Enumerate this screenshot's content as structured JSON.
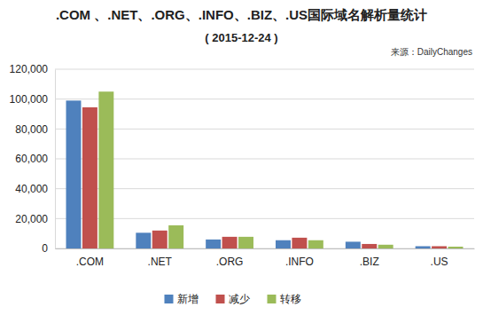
{
  "chart_data": {
    "type": "bar",
    "title": ".COM 、.NET、.ORG、.INFO、.BIZ、.US国际域名解析量统计",
    "subtitle": "( 2015-12-24 )",
    "source": "来源：DailyChanges",
    "categories": [
      ".COM",
      ".NET",
      ".ORG",
      ".INFO",
      ".BIZ",
      ".US"
    ],
    "series": [
      {
        "name": "新增",
        "color": "#4f81bd",
        "values": [
          99000,
          10500,
          6000,
          5500,
          4500,
          1500
        ]
      },
      {
        "name": "减少",
        "color": "#c0504d",
        "values": [
          94500,
          12000,
          7800,
          7200,
          3000,
          1500
        ]
      },
      {
        "name": "转移",
        "color": "#9bbb59",
        "values": [
          105000,
          15500,
          7800,
          5500,
          2500,
          1200
        ]
      }
    ],
    "ylim": [
      0,
      120000
    ],
    "yticks": [
      0,
      {
        "value": 20000,
        "label": "20,000"
      },
      {
        "value": 40000,
        "label": "40,000"
      },
      {
        "value": 60000,
        "label": "60,000"
      },
      {
        "value": 80000,
        "label": "80,000"
      },
      {
        "value": 100000,
        "label": "100,000"
      },
      {
        "value": 120000,
        "label": "120,000"
      }
    ],
    "grid": true,
    "legend": "bottom"
  }
}
